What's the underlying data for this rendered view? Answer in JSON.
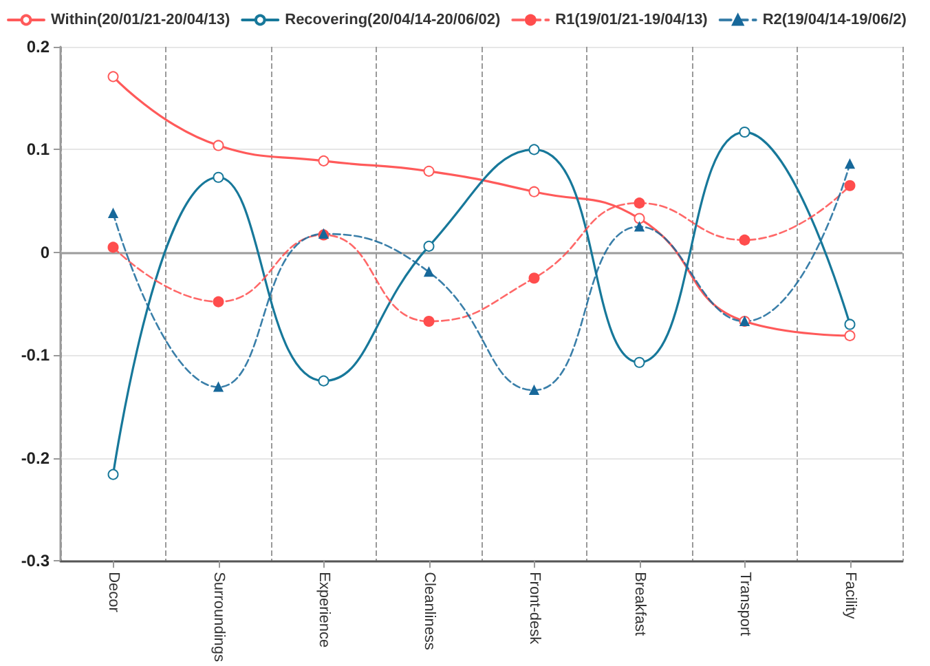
{
  "chart_data": {
    "type": "line",
    "categories": [
      "Decor",
      "Surroundings",
      "Experience",
      "Cleanliness",
      "Front-desk",
      "Breakfast",
      "Transport",
      "Facility"
    ],
    "series": [
      {
        "name": "Within(20/01/21-20/04/13)",
        "color": "#ff5a5a",
        "marker": "circle",
        "line_style": "solid",
        "values": [
          0.171,
          0.104,
          0.089,
          0.079,
          0.059,
          0.033,
          -0.067,
          -0.081
        ]
      },
      {
        "name": "Recovering(20/04/14-20/06/02)",
        "color": "#17789a",
        "marker": "circle",
        "line_style": "solid",
        "values": [
          -0.216,
          0.073,
          -0.125,
          0.006,
          0.1,
          -0.107,
          0.117,
          -0.07
        ]
      },
      {
        "name": "R1(19/01/21-19/04/13)",
        "color": "#ff4d4d",
        "marker": "circle",
        "line_style": "dashed",
        "values": [
          0.005,
          -0.048,
          0.017,
          -0.067,
          -0.025,
          0.048,
          0.012,
          0.065
        ]
      },
      {
        "name": "R2(19/04/14-19/06/2)",
        "color": "#17689a",
        "marker": "triangle",
        "line_style": "dashed",
        "values": [
          0.038,
          -0.131,
          0.018,
          -0.019,
          -0.134,
          0.025,
          -0.067,
          0.086
        ]
      }
    ],
    "ylim": [
      -0.3,
      0.2
    ],
    "yticks": [
      -0.3,
      -0.2,
      -0.1,
      0,
      0.1,
      0.2
    ],
    "ref_lines": [
      {
        "axis": "y",
        "value": 0,
        "label": null,
        "color": "#9e9e9e",
        "line_style": "solid"
      }
    ],
    "grid": true,
    "legend": "top left"
  }
}
